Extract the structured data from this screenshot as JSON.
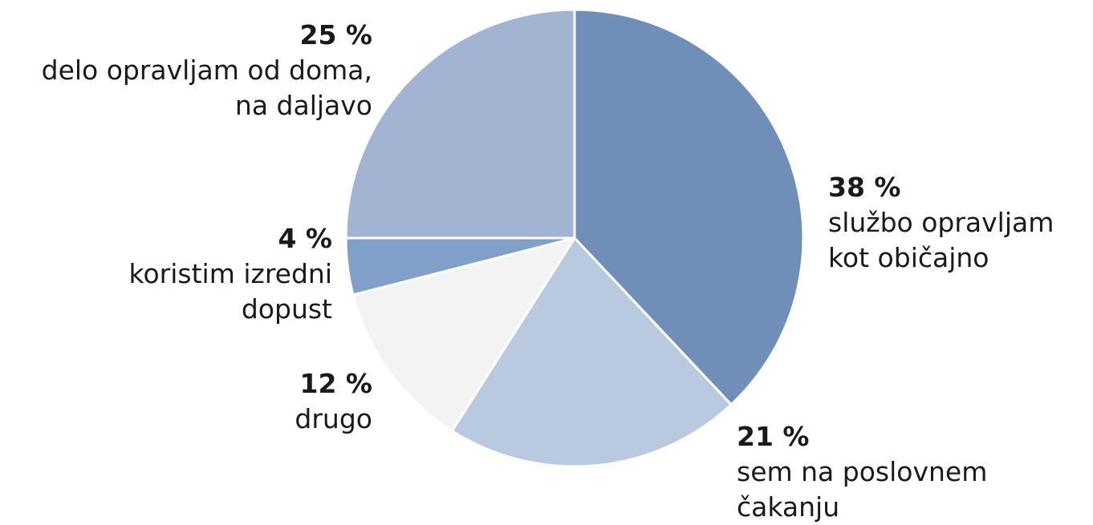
{
  "chart_data": {
    "type": "pie",
    "title": "",
    "start_angle_deg": 0,
    "direction": "clockwise",
    "slices": [
      {
        "pct_label": "38 %",
        "label_lines": [
          "službo opravljam",
          "kot običajno"
        ],
        "value": 38,
        "color": "#6f8fb9"
      },
      {
        "pct_label": "21 %",
        "label_lines": [
          "sem na poslovnem",
          "čakanju"
        ],
        "value": 21,
        "color": "#b9c9e0"
      },
      {
        "pct_label": "12 %",
        "label_lines": [
          "drugo"
        ],
        "value": 12,
        "color": "#f3f3f3"
      },
      {
        "pct_label": "4 %",
        "label_lines": [
          "koristim izredni",
          "dopust"
        ],
        "value": 4,
        "color": "#809fc9"
      },
      {
        "pct_label": "25 %",
        "label_lines": [
          "delo opravljam od doma,",
          "na daljavo"
        ],
        "value": 25,
        "color": "#a2b4d1"
      }
    ]
  }
}
